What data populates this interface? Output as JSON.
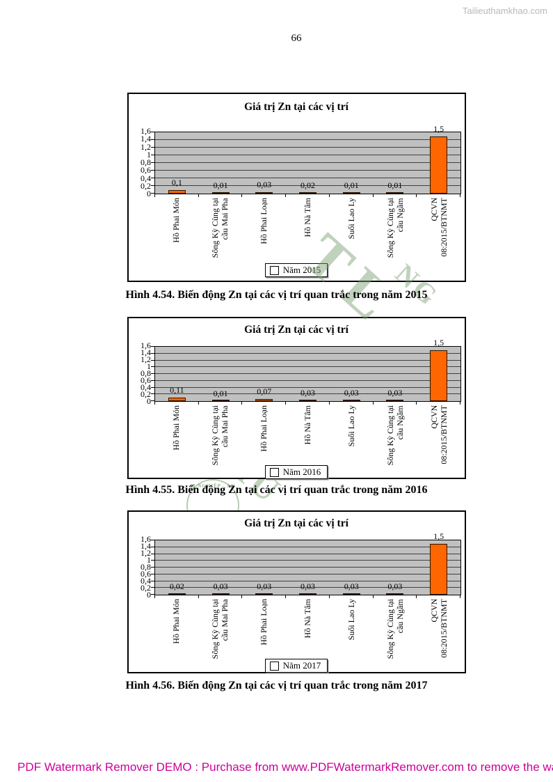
{
  "page": {
    "site_watermark": "Tailieuthamkhao.com",
    "page_number": "66",
    "footer_watermark_text": "PDF Watermark Remover DEMO : Purchase from www.PDFWatermarkRemover.com to remove the waterma",
    "footer_color": "#cc0099"
  },
  "figures": [
    {
      "caption": "Hình 4.54. Biến động Zn tại các vị trí quan trắc trong năm 2015"
    },
    {
      "caption": "Hình 4.55. Biến động Zn tại các vị trí quan trắc trong năm 2016"
    },
    {
      "caption": "Hình 4.56. Biến động Zn tại các vị trí quan trắc trong năm 2017"
    }
  ],
  "chart_data": [
    {
      "type": "bar",
      "title": "Giá trị Zn tại các vị trí",
      "categories": [
        "Hồ Phai Món",
        "Sông Kỳ Cùng tại\ncầu Mai Pha",
        "Hồ Phai Loạn",
        "Hồ Nà Tâm",
        "Suối Lao Ly",
        "Sông Kỳ Cùng tại\ncầu Ngầm",
        "QCVN\n08:2015/BTNMT"
      ],
      "values": [
        0.1,
        0.01,
        0.03,
        0.02,
        0.01,
        0.01,
        1.5
      ],
      "value_labels": [
        "0,1",
        "0,01",
        "0,03",
        "0,02",
        "0,01",
        "0,01",
        "1,5"
      ],
      "legend": "Năm 2015",
      "legend_position": "bottom",
      "ylim": [
        0,
        1.6
      ],
      "ytick_labels": [
        "0",
        "0,2",
        "0,4",
        "0,6",
        "0,8",
        "1",
        "1,2",
        "1,4",
        "1,6"
      ],
      "grid": true,
      "bar_color": "#ff6600",
      "plot_bg": "#c0c0c0"
    },
    {
      "type": "bar",
      "title": "Giá trị Zn tại các vị trí",
      "categories": [
        "Hồ Phai Món",
        "Sông Kỳ Cùng tại\ncầu Mai Pha",
        "Hồ Phai Loạn",
        "Hồ Nà Tâm",
        "Suối Lao Ly",
        "Sông Kỳ Cùng tại\ncầu Ngầm",
        "QCVN\n08:2015/BTNMT"
      ],
      "values": [
        0.11,
        0.01,
        0.07,
        0.03,
        0.03,
        0.03,
        1.5
      ],
      "value_labels": [
        "0,11",
        "0,01",
        "0,07",
        "0,03",
        "0,03",
        "0,03",
        "1,5"
      ],
      "legend": "Năm 2016",
      "legend_position": "bottom",
      "ylim": [
        0,
        1.6
      ],
      "ytick_labels": [
        "0",
        "0,2",
        "0,4",
        "0,6",
        "0,8",
        "1",
        "1,2",
        "1,4",
        "1,6"
      ],
      "grid": true,
      "bar_color": "#ff6600",
      "plot_bg": "#c0c0c0"
    },
    {
      "type": "bar",
      "title": "Giá trị Zn tại các vị trí",
      "categories": [
        "Hồ Phai Món",
        "Sông Kỳ Cùng tại\ncầu Mai Pha",
        "Hồ Phai Loạn",
        "Hồ Nà Tâm",
        "Suối Lao Ly",
        "Sông Kỳ Cùng tại\ncầu Ngầm",
        "QCVN\n08:2015/BTNMT"
      ],
      "values": [
        0.02,
        0.03,
        0.03,
        0.03,
        0.03,
        0.03,
        1.5
      ],
      "value_labels": [
        "0,02",
        "0,03",
        "0,03",
        "0,03",
        "0,03",
        "0,03",
        "1,5"
      ],
      "legend": "Năm 2017",
      "legend_position": "bottom",
      "ylim": [
        0,
        1.6
      ],
      "ytick_labels": [
        "0",
        "0,2",
        "0,4",
        "0,6",
        "0,8",
        "1",
        "1,2",
        "1,4",
        "1,6"
      ],
      "grid": true,
      "bar_color": "#ff6600",
      "plot_bg": "#c0c0c0"
    }
  ],
  "stamp_watermark": {
    "fragments": [
      "TL",
      "NG",
      "TRU",
      "M NGHIỆP - AN"
    ],
    "color": "#8fae89"
  }
}
